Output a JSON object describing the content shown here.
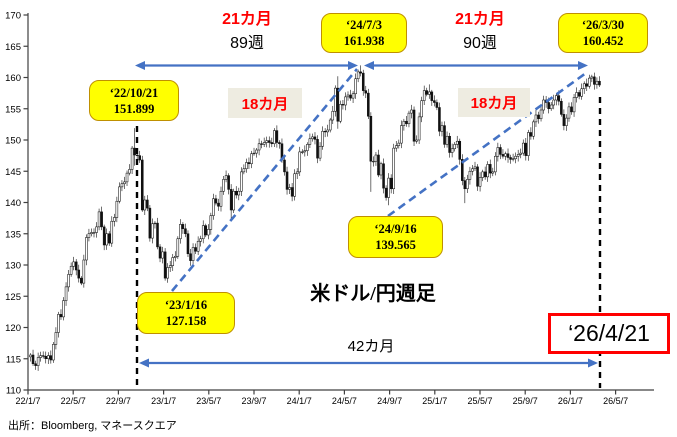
{
  "source": "出所：Bloomberg, マネースクエア",
  "annotations": {
    "period_left": {
      "months": "21カ月",
      "weeks": "89週"
    },
    "period_right": {
      "months": "21カ月",
      "weeks": "90週"
    },
    "trend_labels": [
      "18カ月",
      "18カ月"
    ],
    "bottom_span": "42カ月",
    "forecast_date": "‘26/4/21",
    "callouts": [
      {
        "date": "‘22/10/21",
        "price": "151.899"
      },
      {
        "date": "‘24/7/3",
        "price": "161.938"
      },
      {
        "date": "‘26/3/30",
        "price": "160.452"
      },
      {
        "date": "‘23/1/16",
        "price": "127.158"
      },
      {
        "date": "‘24/9/16",
        "price": "139.565"
      }
    ]
  },
  "colors": {
    "arrow_blue": "#4472C4",
    "callout_fill": "#FFFF00",
    "callout_border": "#BF9000",
    "red_text": "#FF0000",
    "red_box_border": "#FF0000",
    "label_bg": "#EEECE1",
    "candle": "#111111",
    "axis": "#404040"
  },
  "chart_data": {
    "type": "candlestick",
    "title": "米ドル/円週足",
    "series_name": "USD/JPY weekly",
    "frequency": "weekly",
    "grid": false,
    "legend": false,
    "ylim": [
      110,
      170
    ],
    "y_ticks": [
      110,
      115,
      120,
      125,
      130,
      135,
      140,
      145,
      150,
      155,
      160,
      165,
      170
    ],
    "x_ticks": [
      "22/1/7",
      "22/5/7",
      "22/9/7",
      "23/1/7",
      "23/5/7",
      "23/9/7",
      "24/1/7",
      "24/5/7",
      "24/9/7",
      "25/1/7",
      "25/5/7",
      "25/9/7",
      "26/1/7",
      "26/5/7"
    ],
    "key_points": [
      {
        "date": "22/10/21",
        "price": 151.899,
        "kind": "high"
      },
      {
        "date": "23/1/16",
        "price": 127.158,
        "kind": "low"
      },
      {
        "date": "24/7/3",
        "price": 161.938,
        "kind": "high"
      },
      {
        "date": "24/9/16",
        "price": 139.565,
        "kind": "low"
      },
      {
        "date": "26/3/30",
        "price": 160.452,
        "kind": "high"
      },
      {
        "date": "26/4/21",
        "kind": "projected-cycle-date"
      }
    ],
    "spans": [
      {
        "label": "21カ月 / 89週",
        "from": "22/10/21",
        "to": "24/7/3"
      },
      {
        "label": "21カ月 / 90週",
        "from": "24/7/3",
        "to": "26/3/30"
      },
      {
        "label": "18カ月",
        "from": "23/1/16",
        "to": "24/7/3"
      },
      {
        "label": "18カ月",
        "from": "24/9/16",
        "to": "26/3/30"
      },
      {
        "label": "42カ月",
        "from": "22/10/21",
        "to": "26/4/21"
      }
    ],
    "weekly_closes": [
      115.6,
      114.2,
      113.9,
      115.2,
      115.5,
      115.4,
      115.0,
      115.5,
      114.8,
      117.3,
      119.2,
      122.1,
      121.7,
      124.3,
      126.5,
      128.5,
      129.8,
      130.5,
      129.2,
      127.9,
      127.1,
      130.8,
      134.4,
      135.0,
      135.2,
      135.2,
      136.1,
      138.5,
      136.1,
      133.2,
      135.0,
      133.5,
      137.0,
      137.6,
      140.2,
      142.5,
      143.0,
      143.3,
      144.7,
      145.3,
      148.7,
      147.6,
      147.5,
      146.8,
      138.8,
      140.4,
      139.1,
      134.3,
      136.6,
      136.7,
      132.9,
      131.1,
      132.1,
      127.9,
      129.6,
      129.9,
      131.2,
      131.4,
      134.2,
      136.5,
      135.8,
      135.0,
      131.8,
      130.7,
      132.8,
      132.2,
      133.8,
      134.2,
      136.3,
      134.8,
      135.7,
      137.9,
      140.6,
      139.9,
      139.4,
      141.8,
      143.7,
      144.3,
      142.1,
      138.8,
      141.8,
      141.2,
      141.8,
      144.9,
      145.4,
      146.4,
      146.2,
      147.8,
      147.9,
      148.4,
      149.4,
      149.3,
      149.6,
      149.9,
      149.6,
      149.4,
      151.5,
      149.6,
      149.4,
      146.8,
      144.9,
      142.1,
      142.4,
      141.0,
      144.6,
      144.9,
      148.1,
      148.1,
      148.3,
      149.3,
      150.2,
      150.5,
      150.1,
      147.1,
      149.0,
      151.4,
      151.3,
      151.6,
      153.2,
      154.6,
      158.3,
      153.0,
      155.7,
      155.6,
      156.9,
      157.2,
      156.7,
      157.4,
      159.8,
      160.9,
      160.7,
      157.9,
      157.5,
      153.8,
      146.6,
      146.6,
      147.6,
      144.4,
      146.2,
      142.3,
      140.8,
      143.9,
      142.2,
      148.7,
      149.1,
      149.5,
      152.3,
      153.0,
      152.6,
      154.3,
      154.8,
      149.8,
      150.0,
      153.7,
      156.3,
      157.9,
      157.3,
      157.7,
      156.3,
      156.0,
      155.2,
      151.4,
      152.3,
      149.3,
      150.6,
      148.0,
      148.6,
      149.3,
      149.8,
      146.9,
      143.5,
      142.2,
      143.7,
      145.0,
      145.4,
      145.7,
      142.6,
      144.0,
      144.9,
      144.1,
      146.1,
      144.7,
      144.9,
      147.4,
      148.8,
      147.7,
      147.4,
      147.8,
      147.2,
      146.9,
      147.0,
      147.4,
      147.7,
      147.9,
      149.5,
      147.5,
      151.2,
      150.6,
      152.9,
      154.0,
      153.4,
      154.8,
      156.4,
      156.0,
      155.0,
      155.6,
      156.4,
      157.1,
      156.2,
      154.1,
      152.3,
      153.5,
      155.3,
      154.5,
      156.8,
      157.6,
      157.0,
      158.2,
      159.0,
      158.6,
      159.9,
      160.1,
      158.9,
      159.4,
      158.8
    ],
    "wick_overrides": {
      "41": {
        "h": 151.9,
        "l": 145.9
      },
      "44": {
        "l": 138.5
      },
      "53": {
        "l": 127.5
      },
      "54": {
        "l": 127.16
      },
      "79": {
        "l": 137.3
      },
      "96": {
        "h": 151.9
      },
      "103": {
        "l": 140.2
      },
      "121": {
        "h": 160.2,
        "l": 151.8
      },
      "130": {
        "h": 161.94
      },
      "134": {
        "l": 141.7
      },
      "140": {
        "l": 140.3
      },
      "141": {
        "l": 139.57
      },
      "157": {
        "h": 158.9
      },
      "171": {
        "l": 139.9
      },
      "221": {
        "h": 160.45
      }
    }
  }
}
